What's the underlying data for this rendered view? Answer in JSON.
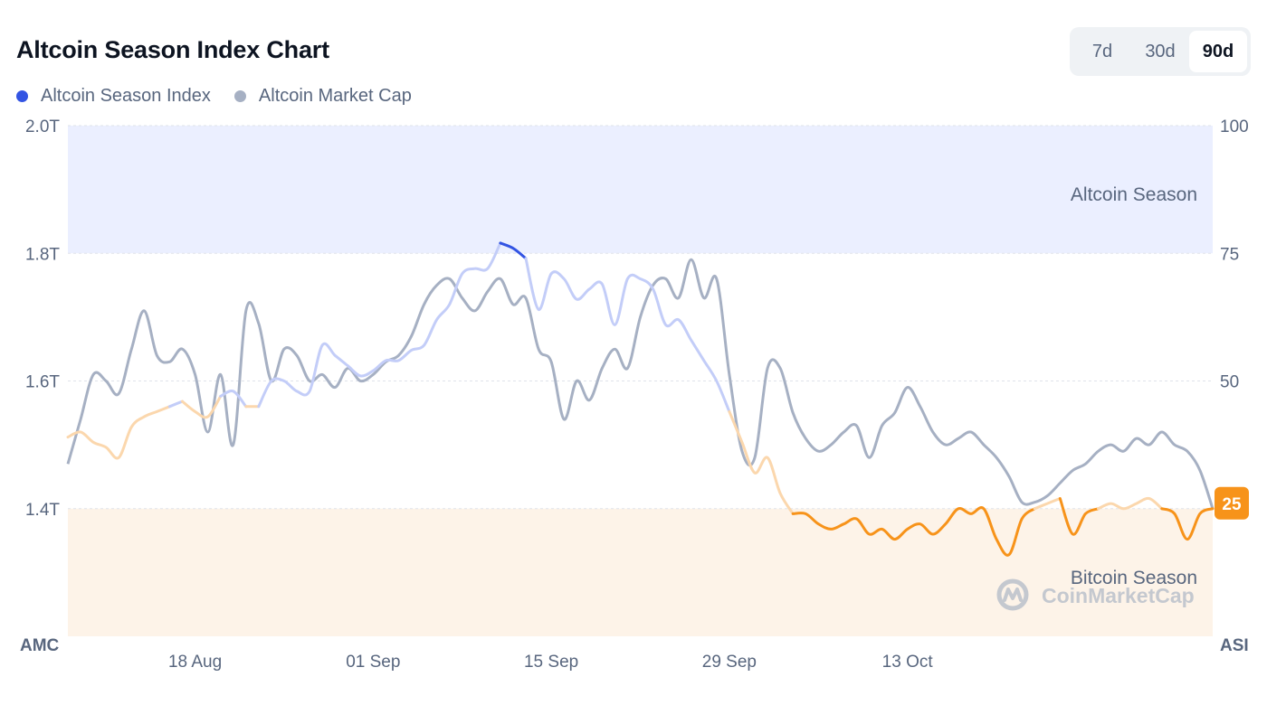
{
  "header": {
    "title": "Altcoin Season Index Chart"
  },
  "legend": [
    {
      "label": "Altcoin Season Index",
      "color": "#3354e3"
    },
    {
      "label": "Altcoin Market Cap",
      "color": "#a6b0c3"
    }
  ],
  "range_selector": {
    "options": [
      "7d",
      "30d",
      "90d"
    ],
    "selected": "90d"
  },
  "watermark": {
    "text": "CoinMarketCap",
    "icon": "coinmarketcap-logo-icon"
  },
  "chart_data": {
    "type": "line",
    "grid": true,
    "legend_position": "top-left",
    "x_ticks": [
      "18 Aug",
      "01 Sep",
      "15 Sep",
      "29 Sep",
      "13 Oct"
    ],
    "x_tick_days": [
      10,
      24,
      38,
      52,
      66
    ],
    "x_range": [
      0,
      90
    ],
    "left_axis": {
      "label": "AMC",
      "ticks": [
        "2.0T",
        "1.8T",
        "1.6T",
        "1.4T"
      ],
      "tick_values": [
        2.0,
        1.8,
        1.6,
        1.4
      ],
      "range": [
        1.2,
        2.0
      ]
    },
    "right_axis": {
      "label": "ASI",
      "ticks": [
        "100",
        "75",
        "50",
        "25"
      ],
      "tick_values": [
        100,
        75,
        50,
        25
      ],
      "range": [
        0,
        100
      ]
    },
    "zones": [
      {
        "label": "Altcoin Season",
        "from": 75,
        "to": 100,
        "color": "#ebefff"
      },
      {
        "label": "Bitcoin Season",
        "from": 0,
        "to": 25,
        "color": "#fdf3e8"
      }
    ],
    "current_value": {
      "label": "25",
      "value": 25,
      "color": "#f7931a"
    },
    "series": [
      {
        "name": "Altcoin Market Cap",
        "axis": "left",
        "color": "#a6b0c3",
        "x": [
          0,
          1,
          2,
          3,
          4,
          5,
          6,
          7,
          8,
          9,
          10,
          11,
          12,
          13,
          14,
          15,
          16,
          17,
          18,
          19,
          20,
          21,
          22,
          23,
          24,
          25,
          26,
          27,
          28,
          29,
          30,
          31,
          32,
          33,
          34,
          35,
          36,
          37,
          38,
          39,
          40,
          41,
          42,
          43,
          44,
          45,
          46,
          47,
          48,
          49,
          50,
          51,
          52,
          53,
          54,
          55,
          56,
          57,
          58,
          59,
          60,
          61,
          62,
          63,
          64,
          65,
          66,
          67,
          68,
          69,
          70,
          71,
          72,
          73,
          74,
          75,
          76,
          77,
          78,
          79,
          80,
          81,
          82,
          83,
          84,
          85,
          86,
          87,
          88,
          89,
          90
        ],
        "y": [
          1.47,
          1.54,
          1.61,
          1.6,
          1.58,
          1.65,
          1.71,
          1.64,
          1.63,
          1.65,
          1.61,
          1.52,
          1.61,
          1.5,
          1.71,
          1.69,
          1.6,
          1.65,
          1.64,
          1.6,
          1.61,
          1.59,
          1.62,
          1.6,
          1.61,
          1.63,
          1.64,
          1.67,
          1.72,
          1.75,
          1.76,
          1.73,
          1.71,
          1.74,
          1.76,
          1.72,
          1.73,
          1.65,
          1.63,
          1.54,
          1.6,
          1.57,
          1.62,
          1.65,
          1.62,
          1.7,
          1.75,
          1.76,
          1.73,
          1.79,
          1.73,
          1.76,
          1.61,
          1.49,
          1.48,
          1.62,
          1.62,
          1.55,
          1.51,
          1.49,
          1.5,
          1.52,
          1.53,
          1.48,
          1.53,
          1.55,
          1.59,
          1.56,
          1.52,
          1.5,
          1.51,
          1.52,
          1.5,
          1.48,
          1.45,
          1.41,
          1.41,
          1.42,
          1.44,
          1.46,
          1.47,
          1.49,
          1.5,
          1.49,
          1.51,
          1.5,
          1.52,
          1.5,
          1.49,
          1.46,
          1.4
        ]
      },
      {
        "name": "Altcoin Season Index",
        "axis": "right",
        "color": "#3354e3",
        "x": [
          0,
          1,
          2,
          3,
          4,
          5,
          6,
          7,
          8,
          9,
          10,
          11,
          12,
          13,
          14,
          15,
          16,
          17,
          18,
          19,
          20,
          21,
          22,
          23,
          24,
          25,
          26,
          27,
          28,
          29,
          30,
          31,
          32,
          33,
          34,
          35,
          36,
          37,
          38,
          39,
          40,
          41,
          42,
          43,
          44,
          45,
          46,
          47,
          48,
          49,
          50,
          51,
          52,
          53,
          54,
          55,
          56,
          57,
          58,
          59,
          60,
          61,
          62,
          63,
          64,
          65,
          66,
          67,
          68,
          69,
          70,
          71,
          72,
          73,
          74,
          75,
          76,
          77,
          78,
          79,
          80,
          81,
          82,
          83,
          84,
          85,
          86,
          87,
          88,
          89,
          90
        ],
        "y": [
          39,
          40,
          38,
          37,
          35,
          41,
          43,
          44,
          45,
          46,
          44,
          43,
          47,
          48,
          45,
          45,
          50,
          50,
          48,
          48,
          57,
          55,
          53,
          51,
          52,
          54,
          54,
          56,
          57,
          62,
          65,
          71,
          72,
          72,
          77,
          76,
          74,
          64,
          71,
          70,
          66,
          68,
          69,
          61,
          70,
          70,
          68,
          61,
          62,
          58,
          54,
          50,
          44,
          38,
          32,
          35,
          28,
          24,
          24,
          22,
          21,
          22,
          23,
          20,
          21,
          19,
          21,
          22,
          20,
          22,
          25,
          24,
          25,
          19,
          16,
          23,
          25,
          26,
          27,
          20,
          24,
          25,
          26,
          25,
          26,
          27,
          25,
          24,
          19,
          24,
          25
        ]
      }
    ]
  }
}
